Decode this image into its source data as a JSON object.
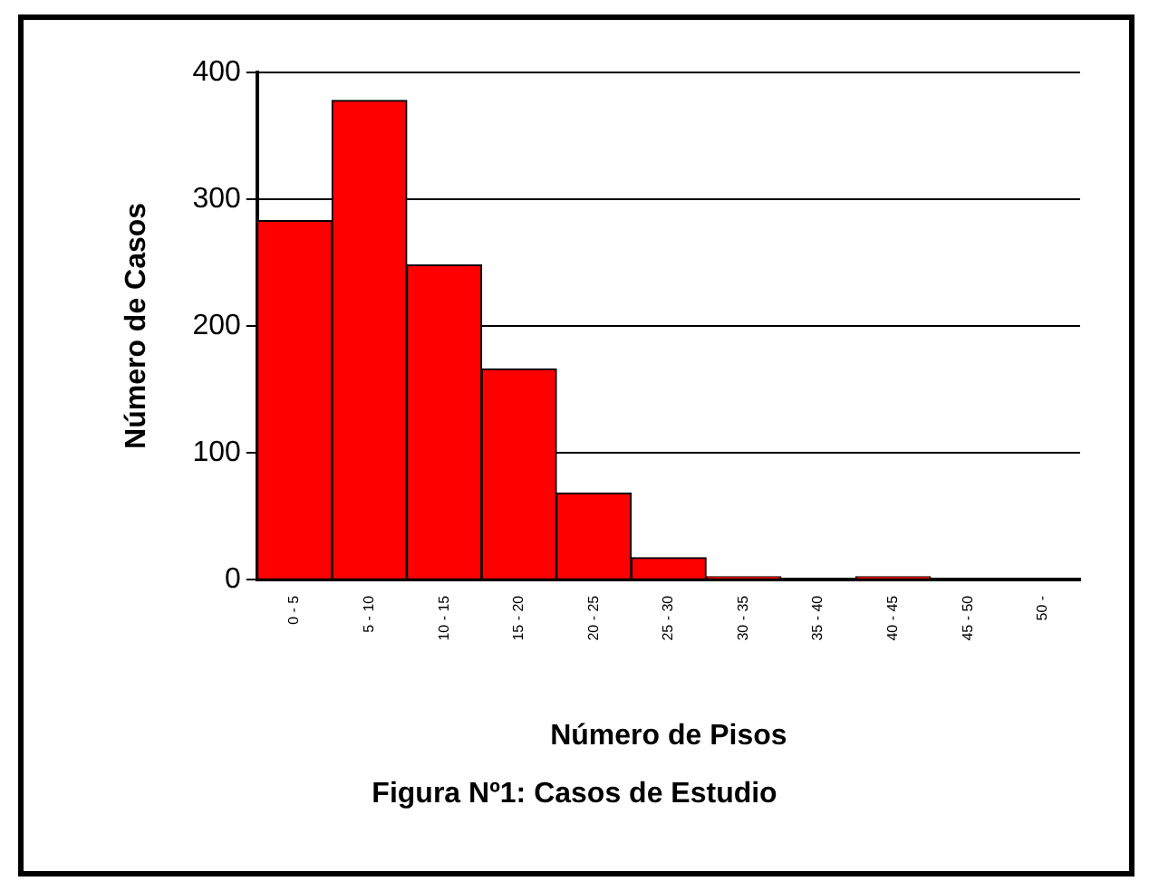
{
  "chart_data": {
    "type": "bar",
    "categories": [
      "0 - 5",
      "5 - 10",
      "10 - 15",
      "15 - 20",
      "20 - 25",
      "25 - 30",
      "30 - 35",
      "35 - 40",
      "40 - 45",
      "45 - 50",
      "50 -"
    ],
    "values": [
      283,
      378,
      248,
      166,
      68,
      17,
      2,
      0,
      2,
      0,
      0
    ],
    "color": "#ff0000",
    "xlabel": "Número de Pisos",
    "ylabel": "Número de Casos",
    "ylim": [
      0,
      400
    ],
    "yticks": [
      0,
      100,
      200,
      300,
      400
    ],
    "grid": "y",
    "annotations": [
      "Figura Nº1: Casos de Estudio"
    ]
  }
}
